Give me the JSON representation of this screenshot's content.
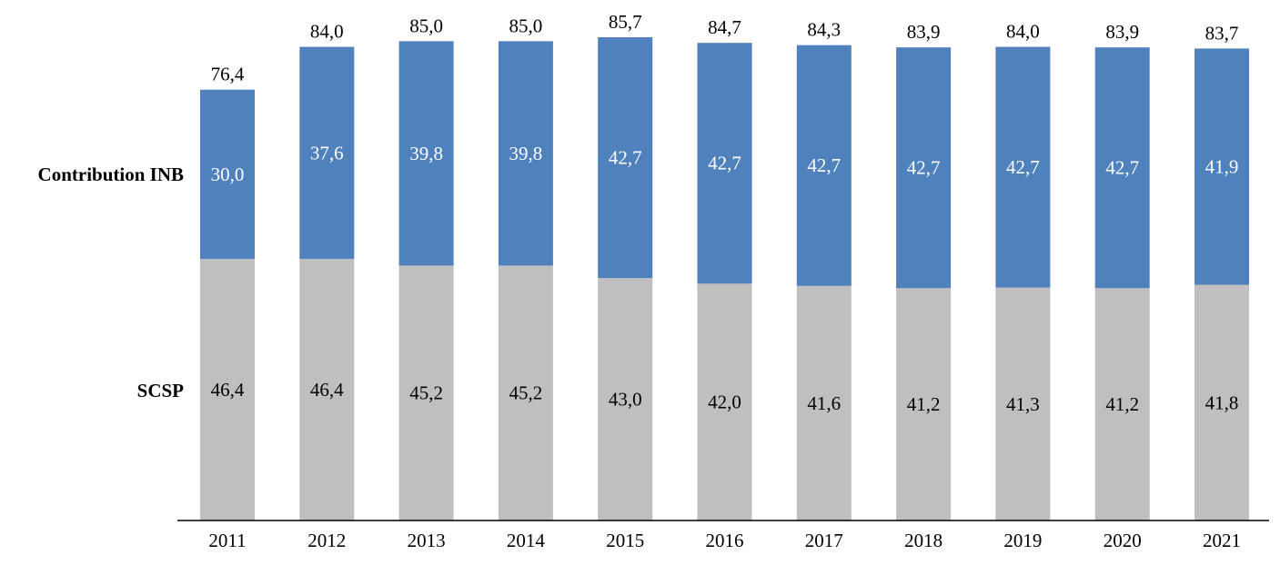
{
  "chart_data": {
    "type": "bar",
    "stacked": true,
    "categories": [
      "2011",
      "2012",
      "2013",
      "2014",
      "2015",
      "2016",
      "2017",
      "2018",
      "2019",
      "2020",
      "2021"
    ],
    "series": [
      {
        "name": "SCSP",
        "color": "#bfbfbf",
        "label_color": "#000000",
        "values": [
          46.4,
          46.4,
          45.2,
          45.2,
          43.0,
          42.0,
          41.6,
          41.2,
          41.3,
          41.2,
          41.8
        ],
        "labels": [
          "46,4",
          "46,4",
          "45,2",
          "45,2",
          "43,0",
          "42,0",
          "41,6",
          "41,2",
          "41,3",
          "41,2",
          "41,8"
        ]
      },
      {
        "name": "Contribution INB",
        "color": "#4f81bd",
        "label_color": "#ffffff",
        "values": [
          30.0,
          37.6,
          39.8,
          39.8,
          42.7,
          42.7,
          42.7,
          42.7,
          42.7,
          42.7,
          41.9
        ],
        "labels": [
          "30,0",
          "37,6",
          "39,8",
          "39,8",
          "42,7",
          "42,7",
          "42,7",
          "42,7",
          "42,7",
          "42,7",
          "41,9"
        ]
      }
    ],
    "totals": [
      76.4,
      84.0,
      85.0,
      85.0,
      85.7,
      84.7,
      84.3,
      83.9,
      84.0,
      83.9,
      83.7
    ],
    "total_labels": [
      "76,4",
      "84,0",
      "85,0",
      "85,0",
      "85,7",
      "84,7",
      "84,3",
      "83,9",
      "84,0",
      "83,9",
      "83,7"
    ],
    "ylim": [
      0,
      85.7
    ],
    "grid": false,
    "legend": "series names printed at left of bars"
  }
}
